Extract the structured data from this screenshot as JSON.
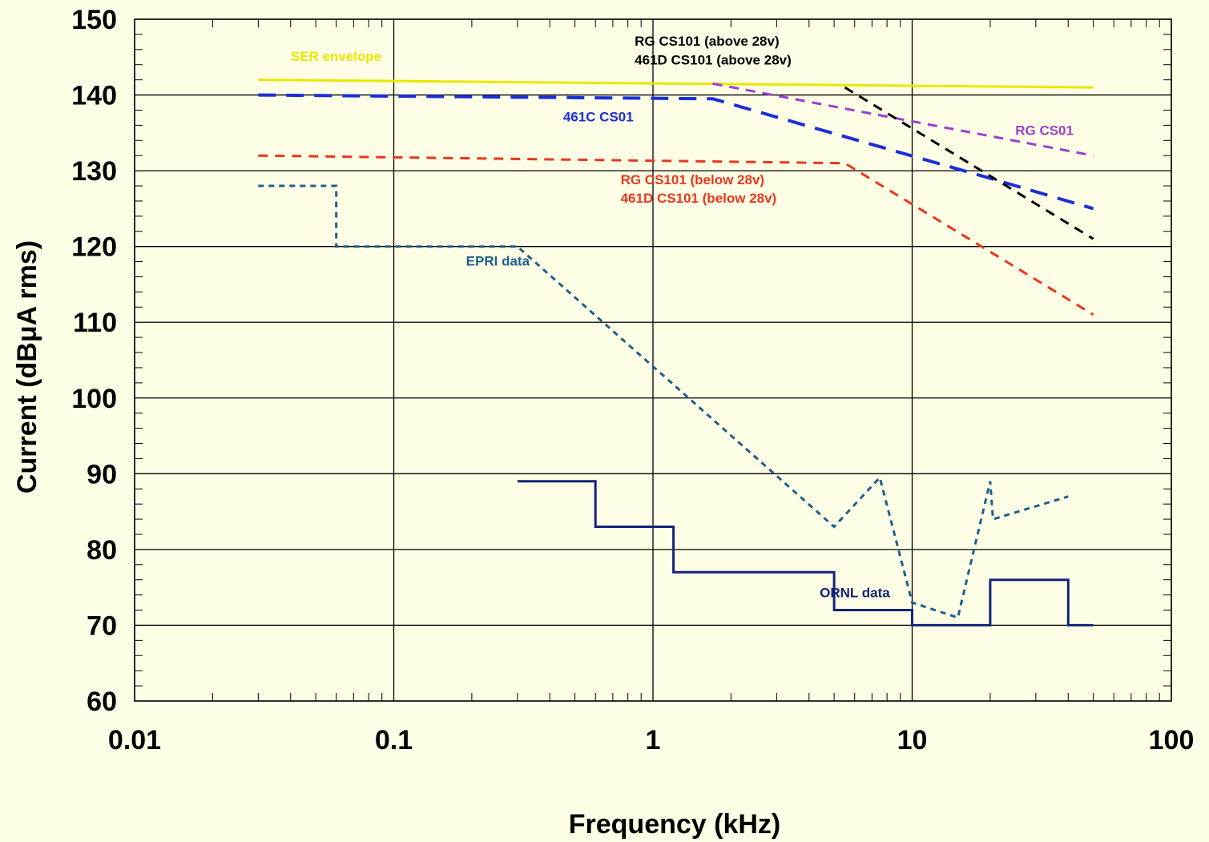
{
  "chart_data": {
    "type": "line",
    "title": "",
    "xlabel": "Frequency (kHz)",
    "ylabel": "Current (dBμA rms)",
    "x_scale": "log",
    "xlim": [
      0.01,
      100
    ],
    "ylim": [
      60,
      150
    ],
    "x_ticks": [
      "0.01",
      "0.1",
      "1",
      "10",
      "100"
    ],
    "y_ticks": [
      "60",
      "70",
      "80",
      "90",
      "100",
      "110",
      "120",
      "130",
      "140",
      "150"
    ],
    "grid": true,
    "series": [
      {
        "name": "SER envelope",
        "color": "#e8e800",
        "style": "solid",
        "x": [
          0.03,
          50
        ],
        "y": [
          142,
          141
        ]
      },
      {
        "name": "461C CS01",
        "color": "#1a2fd6",
        "style": "long-dash",
        "x": [
          0.03,
          1.7,
          20,
          50
        ],
        "y": [
          140,
          139.5,
          129,
          125
        ]
      },
      {
        "name": "RG CS01",
        "color": "#9b3fd0",
        "style": "dash",
        "x": [
          1.7,
          50
        ],
        "y": [
          141.5,
          132
        ]
      },
      {
        "name": "RG CS101 (above 28v) / 461D CS101 (above 28v)",
        "color": "#000000",
        "style": "dash",
        "x": [
          5.5,
          50
        ],
        "y": [
          141,
          121
        ]
      },
      {
        "name": "RG CS101 (below 28v) / 461D CS101 (below 28v)",
        "color": "#e8381a",
        "style": "dash",
        "x": [
          0.03,
          5.5,
          50
        ],
        "y": [
          132,
          131,
          111
        ]
      },
      {
        "name": "EPRI data",
        "color": "#1f5f8a",
        "style": "dot",
        "x": [
          0.03,
          0.06,
          0.06,
          0.3,
          5,
          7.5,
          10,
          15,
          20,
          20.5,
          40
        ],
        "y": [
          128,
          128,
          120,
          120,
          83,
          89.5,
          73,
          71,
          89,
          84,
          87
        ]
      },
      {
        "name": "ORNL data",
        "color": "#14227a",
        "style": "solid",
        "x": [
          0.3,
          0.6,
          0.6,
          1.2,
          1.2,
          5,
          5,
          10,
          10,
          20,
          20,
          40,
          40,
          50
        ],
        "y": [
          89,
          89,
          83,
          83,
          77,
          77,
          72,
          72,
          70,
          70,
          76,
          76,
          70,
          70
        ]
      }
    ],
    "annotations": [
      {
        "text": "SER envelope",
        "color": "#e8e800",
        "x": 0.04,
        "y": 144.5
      },
      {
        "text": "RG CS101 (above 28v)",
        "color": "#000000",
        "x": 0.85,
        "y": 146.5
      },
      {
        "text": "461D CS101 (above 28v)",
        "color": "#000000",
        "x": 0.85,
        "y": 144
      },
      {
        "text": "461C CS01",
        "color": "#1a2fd6",
        "x": 0.45,
        "y": 136.5
      },
      {
        "text": "RG CS01",
        "color": "#9b3fd0",
        "x": 25,
        "y": 134.7
      },
      {
        "text": "RG CS101 (below 28v)",
        "color": "#e8381a",
        "x": 0.75,
        "y": 128.2
      },
      {
        "text": "461D CS101 (below 28v)",
        "color": "#e8381a",
        "x": 0.75,
        "y": 125.8
      },
      {
        "text": "EPRI data",
        "color": "#1f5f8a",
        "x": 0.19,
        "y": 117.5
      },
      {
        "text": "ORNL data",
        "color": "#14227a",
        "x": 4.4,
        "y": 73.7
      }
    ]
  }
}
